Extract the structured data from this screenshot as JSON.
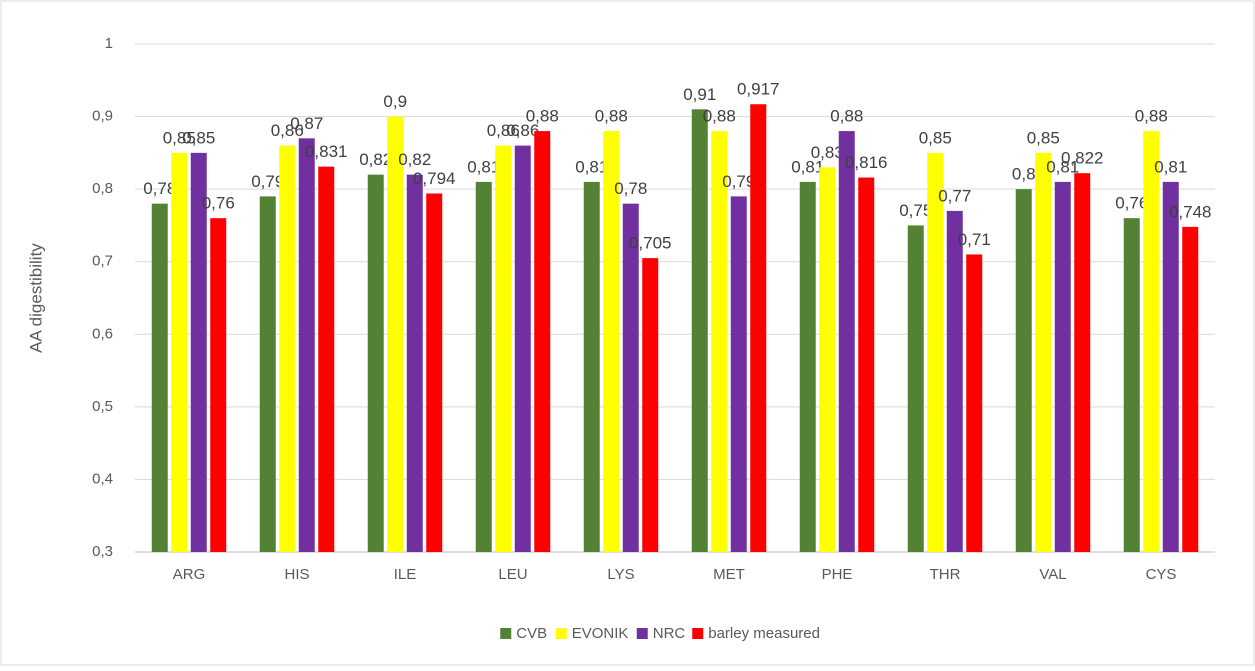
{
  "chart_data": {
    "type": "bar",
    "y_label": "AA digestibility",
    "categories": [
      "ARG",
      "HIS",
      "ILE",
      "LEU",
      "LYS",
      "MET",
      "PHE",
      "THR",
      "VAL",
      "CYS"
    ],
    "series": [
      {
        "name": "CVB",
        "color": "#548235",
        "values": [
          0.78,
          0.79,
          0.82,
          0.81,
          0.81,
          0.91,
          0.81,
          0.75,
          0.8,
          0.76
        ],
        "value_labels": [
          "0,78",
          "0,79",
          "0,82",
          "0,81",
          "0,81",
          "0,91",
          "0,81",
          "0,75",
          "0,8",
          "0,76"
        ]
      },
      {
        "name": "EVONIK",
        "color": "#ffff00",
        "values": [
          0.85,
          0.86,
          0.9,
          0.86,
          0.88,
          0.88,
          0.83,
          0.85,
          0.85,
          0.88
        ],
        "value_labels": [
          "0,85",
          "0,86",
          "0,9",
          "0,86",
          "0,88",
          "0,88",
          "0,83",
          "0,85",
          "0,85",
          "0,88"
        ]
      },
      {
        "name": "NRC",
        "color": "#7030a0",
        "values": [
          0.85,
          0.87,
          0.82,
          0.86,
          0.78,
          0.79,
          0.88,
          0.77,
          0.81,
          0.81
        ],
        "value_labels": [
          "0,85",
          "0,87",
          "0,82",
          "0,86",
          "0,78",
          "0,79",
          "0,88",
          "0,77",
          "0,81",
          "0,81"
        ]
      },
      {
        "name": "barley measured",
        "color": "#ff0000",
        "values": [
          0.76,
          0.831,
          0.794,
          0.88,
          0.705,
          0.917,
          0.816,
          0.71,
          0.822,
          0.748
        ],
        "value_labels": [
          "0,76",
          "0,831",
          "0,794",
          "0,88",
          "0,705",
          "0,917",
          "0,816",
          "0,71",
          "0,822",
          "0,748"
        ]
      }
    ],
    "ylim": [
      0.3,
      1
    ],
    "yticks": [
      {
        "value": 0.3,
        "label": "0,3"
      },
      {
        "value": 0.4,
        "label": "0,4"
      },
      {
        "value": 0.5,
        "label": "0,5"
      },
      {
        "value": 0.6,
        "label": "0,6"
      },
      {
        "value": 0.7,
        "label": "0,7"
      },
      {
        "value": 0.8,
        "label": "0,8"
      },
      {
        "value": 0.9,
        "label": "0,9"
      },
      1
    ],
    "grid": true,
    "legend": "bottom"
  }
}
